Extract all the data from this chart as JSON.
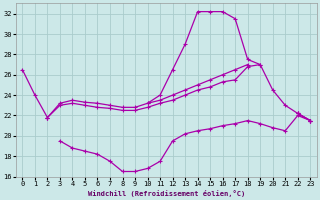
{
  "xlabel": "Windchill (Refroidissement éolien,°C)",
  "background_color": "#cce8e8",
  "grid_color": "#aacccc",
  "line_color": "#aa00aa",
  "xlim": [
    -0.5,
    23.5
  ],
  "ylim": [
    16,
    33
  ],
  "xticks": [
    0,
    1,
    2,
    3,
    4,
    5,
    6,
    7,
    8,
    9,
    10,
    11,
    12,
    13,
    14,
    15,
    16,
    17,
    18,
    19,
    20,
    21,
    22,
    23
  ],
  "yticks": [
    16,
    18,
    20,
    22,
    24,
    26,
    28,
    30,
    32
  ],
  "series": [
    [
      26.5,
      24.0,
      21.8,
      null,
      null,
      null,
      null,
      null,
      null,
      null,
      23.2,
      24.0,
      26.5,
      29.0,
      32.2,
      32.2,
      32.2,
      31.5,
      27.5,
      27.0,
      null,
      null,
      22.2,
      21.5
    ],
    [
      null,
      null,
      21.8,
      23.2,
      23.5,
      23.3,
      23.2,
      23.0,
      22.8,
      22.8,
      23.2,
      23.5,
      24.0,
      24.5,
      25.0,
      25.5,
      26.0,
      26.5,
      27.0,
      null,
      null,
      null,
      22.2,
      21.5
    ],
    [
      null,
      null,
      21.8,
      23.0,
      23.2,
      23.0,
      22.8,
      22.7,
      22.5,
      22.5,
      22.8,
      23.2,
      23.5,
      24.0,
      24.5,
      24.8,
      25.3,
      25.5,
      26.8,
      27.0,
      24.5,
      23.0,
      22.2,
      21.5
    ],
    [
      null,
      null,
      null,
      19.5,
      18.8,
      18.5,
      18.2,
      17.5,
      16.5,
      16.5,
      16.8,
      17.5,
      19.5,
      20.2,
      20.5,
      20.7,
      21.0,
      21.2,
      21.5,
      21.2,
      20.8,
      20.5,
      22.0,
      21.5
    ]
  ]
}
